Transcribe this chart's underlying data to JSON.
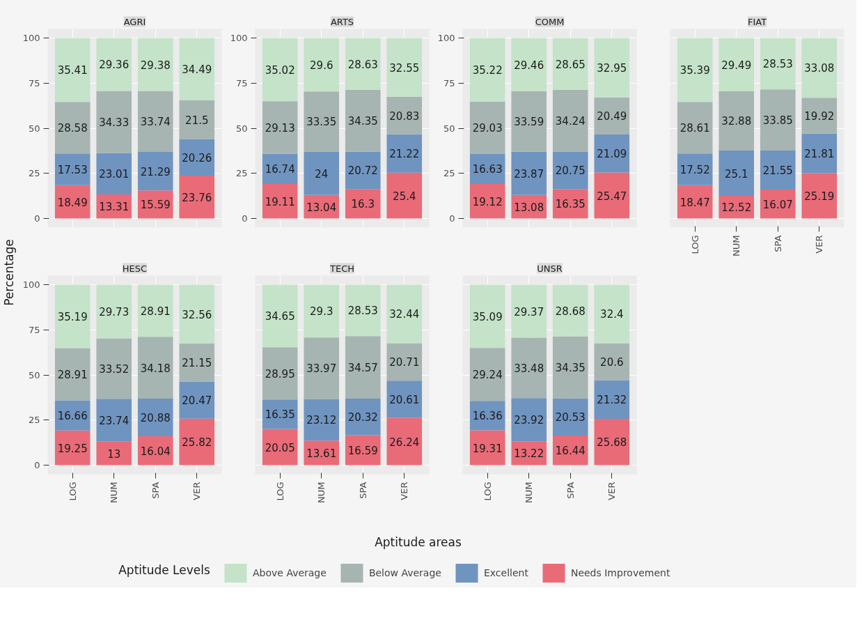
{
  "chart_data": [
    {
      "type": "bar",
      "stacked": true,
      "title": "AGRI",
      "ylabel": "Percentage",
      "categories": [
        null,
        null,
        null,
        null
      ],
      "ylim": [
        -5,
        105
      ],
      "yticks": [
        0,
        25,
        50,
        75,
        100
      ],
      "grid": true,
      "data_labels": true,
      "tick_labels": "y",
      "series": [
        {
          "color": "#e96b78",
          "values": [
            18.49,
            13.31,
            15.59,
            23.76
          ]
        },
        {
          "color": "#7094c0",
          "values": [
            17.53,
            23.01,
            21.29,
            20.26
          ]
        },
        {
          "color": "#a6b5b2",
          "values": [
            28.58,
            34.33,
            33.74,
            21.5
          ]
        },
        {
          "color": "#c4e3c9",
          "values": [
            35.41,
            29.36,
            29.38,
            34.49
          ]
        }
      ]
    },
    {
      "type": "bar",
      "stacked": true,
      "title": "ARTS",
      "categories": [
        null,
        null,
        null,
        null
      ],
      "ylim": [
        -5,
        105
      ],
      "yticks": [
        0,
        25,
        50,
        75,
        100
      ],
      "grid": true,
      "data_labels": true,
      "tick_labels": "y",
      "series": [
        {
          "color": "#e96b78",
          "values": [
            19.11,
            13.04,
            16.3,
            25.4
          ]
        },
        {
          "color": "#7094c0",
          "values": [
            16.74,
            24,
            20.72,
            21.22
          ]
        },
        {
          "color": "#a6b5b2",
          "values": [
            29.13,
            33.35,
            34.35,
            20.83
          ]
        },
        {
          "color": "#c4e3c9",
          "values": [
            35.02,
            29.6,
            28.63,
            32.55
          ]
        }
      ]
    },
    {
      "type": "bar",
      "stacked": true,
      "title": "COMM",
      "categories": [
        null,
        null,
        null,
        null
      ],
      "ylim": [
        -5,
        105
      ],
      "yticks": [
        0,
        25,
        50,
        75,
        100
      ],
      "grid": true,
      "data_labels": true,
      "tick_labels": "y",
      "series": [
        {
          "color": "#e96b78",
          "values": [
            19.12,
            13.08,
            16.35,
            25.47
          ]
        },
        {
          "color": "#7094c0",
          "values": [
            16.63,
            23.87,
            20.75,
            21.09
          ]
        },
        {
          "color": "#a6b5b2",
          "values": [
            29.03,
            33.59,
            34.24,
            20.49
          ]
        },
        {
          "color": "#c4e3c9",
          "values": [
            35.22,
            29.46,
            28.65,
            32.95
          ]
        }
      ]
    },
    {
      "type": "bar",
      "stacked": true,
      "title": "FIAT",
      "categories": [
        "LOG",
        "NUM",
        "SPA",
        "VER"
      ],
      "ylim": [
        -5,
        105
      ],
      "yticks": [
        0,
        25,
        50,
        75,
        100
      ],
      "grid": true,
      "data_labels": true,
      "tick_labels": "x",
      "series": [
        {
          "color": "#e96b78",
          "values": [
            18.47,
            12.52,
            16.07,
            25.19
          ]
        },
        {
          "color": "#7094c0",
          "values": [
            17.52,
            25.1,
            21.55,
            21.81
          ]
        },
        {
          "color": "#a6b5b2",
          "values": [
            28.61,
            32.88,
            33.85,
            19.92
          ]
        },
        {
          "color": "#c4e3c9",
          "values": [
            35.39,
            29.49,
            28.53,
            33.08
          ]
        }
      ]
    },
    {
      "type": "bar",
      "stacked": true,
      "title": "HESC",
      "categories": [
        "LOG",
        "NUM",
        "SPA",
        "VER"
      ],
      "ylim": [
        -5,
        105
      ],
      "yticks": [
        0,
        25,
        50,
        75,
        100
      ],
      "grid": true,
      "data_labels": true,
      "series": [
        {
          "color": "#e96b78",
          "values": [
            19.25,
            13,
            16.04,
            25.82
          ]
        },
        {
          "color": "#7094c0",
          "values": [
            16.66,
            23.74,
            20.88,
            20.47
          ]
        },
        {
          "color": "#a6b5b2",
          "values": [
            28.91,
            33.52,
            34.18,
            21.15
          ]
        },
        {
          "color": "#c4e3c9",
          "values": [
            35.19,
            29.73,
            28.91,
            32.56
          ]
        }
      ]
    },
    {
      "type": "bar",
      "stacked": true,
      "title": "TECH",
      "xlabel": "Aptitude areas",
      "categories": [
        "LOG",
        "NUM",
        "SPA",
        "VER"
      ],
      "ylim": [
        -5,
        105
      ],
      "yticks": [
        0,
        25,
        50,
        75,
        100
      ],
      "grid": true,
      "data_labels": true,
      "tick_labels": "x",
      "series": [
        {
          "color": "#e96b78",
          "values": [
            20.05,
            13.61,
            16.59,
            26.24
          ]
        },
        {
          "color": "#7094c0",
          "values": [
            16.35,
            23.12,
            20.32,
            20.61
          ]
        },
        {
          "color": "#a6b5b2",
          "values": [
            28.95,
            33.97,
            34.57,
            20.71
          ]
        },
        {
          "color": "#c4e3c9",
          "values": [
            34.65,
            29.3,
            28.53,
            32.44
          ]
        }
      ]
    },
    {
      "type": "bar",
      "stacked": true,
      "title": "UNSR",
      "categories": [
        "LOG",
        "NUM",
        "SPA",
        "VER"
      ],
      "ylim": [
        -5,
        105
      ],
      "yticks": [
        0,
        25,
        50,
        75,
        100
      ],
      "grid": true,
      "data_labels": true,
      "tick_labels": "x",
      "legend": "bottom",
      "legend_title": "Aptitude Levels",
      "series": [
        {
          "name": "Needs Improvement",
          "color": "#e96b78",
          "values": [
            19.31,
            13.22,
            16.44,
            25.68
          ]
        },
        {
          "name": "Excellent",
          "color": "#7094c0",
          "values": [
            16.36,
            23.92,
            20.53,
            21.32
          ]
        },
        {
          "name": "Below Average",
          "color": "#a6b5b2",
          "values": [
            29.24,
            33.48,
            34.35,
            20.6
          ]
        },
        {
          "name": "Above Average",
          "color": "#c4e3c9",
          "values": [
            35.09,
            29.37,
            28.68,
            32.4
          ]
        }
      ]
    }
  ]
}
